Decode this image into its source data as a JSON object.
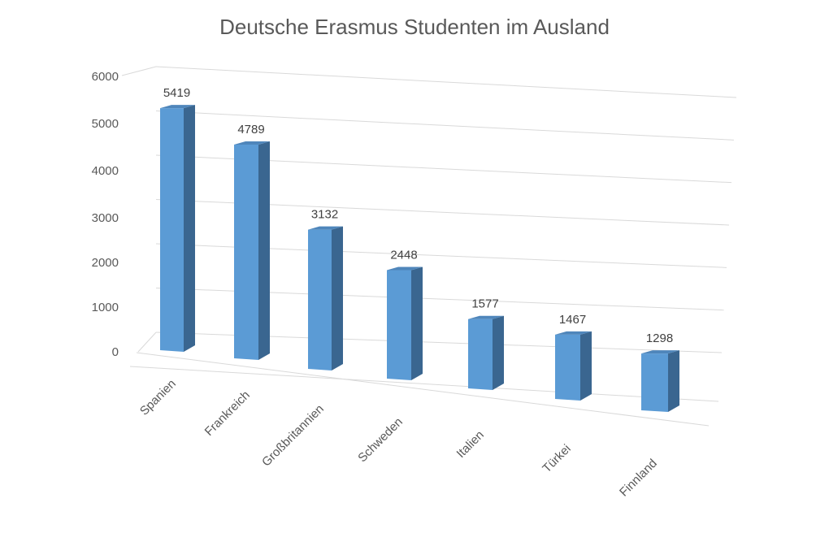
{
  "chart_data": {
    "type": "bar",
    "style": "3d-column",
    "title": "Deutsche Erasmus Studenten im Ausland",
    "categories": [
      "Spanien",
      "Frankreich",
      "Großbritannien",
      "Schweden",
      "Italien",
      "Türkei",
      "Finnland"
    ],
    "values": [
      5419,
      4789,
      3132,
      2448,
      1577,
      1467,
      1298
    ],
    "data_labels": [
      "5419",
      "4789",
      "3132",
      "2448",
      "1577",
      "1467",
      "1298"
    ],
    "yticks": [
      "0",
      "1000",
      "2000",
      "3000",
      "4000",
      "5000",
      "6000"
    ],
    "ylim": [
      0,
      6000
    ],
    "xlabel": "",
    "ylabel": "",
    "grid": true,
    "legend": "none",
    "colors": {
      "bar_front": "#5b9bd5",
      "bar_side": "#3a6690",
      "bar_top": "#4f86bb",
      "grid": "#d9d9d9",
      "text": "#595959"
    }
  }
}
